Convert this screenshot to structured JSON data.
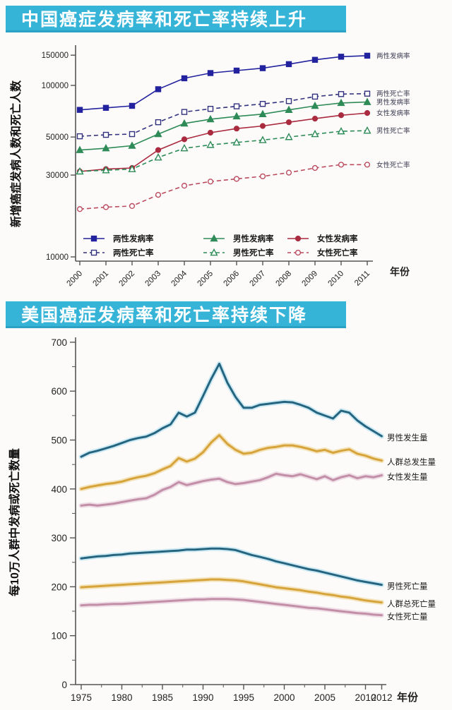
{
  "banners": {
    "china": "中国癌症发病率和死亡率持续上升",
    "usa": "美国癌症发病率和死亡率持续下降"
  },
  "colors": {
    "banner_bg": "#35b4d8",
    "banner_text": "#ffffff",
    "axis": "#555555",
    "tick_text": "#222222",
    "china_both_incidence": "#22229e",
    "china_both_mortality": "#32327e",
    "china_male": "#2e8b57",
    "china_female": "#aa2b3f",
    "china_female_mortality": "#bb4b5f",
    "usa_male": "#26657f",
    "usa_total": "#d7a43b",
    "usa_female": "#c38fa7",
    "usa_male_glow": "#cdeaf4",
    "usa_total_glow": "#f4e4bd",
    "usa_female_glow": "#eeddе6"
  },
  "chart_data": [
    {
      "type": "line",
      "title": "中国癌症发病率和死亡率持续上升",
      "ylabel": "新增癌症发病人数和死亡人数",
      "xlabel": "年份",
      "yscale": "log",
      "ylim": [
        10000,
        160000
      ],
      "yticks": [
        150000,
        100000,
        50000,
        30000,
        10000
      ],
      "x": [
        2000,
        2001,
        2002,
        2003,
        2004,
        2005,
        2006,
        2007,
        2008,
        2009,
        2010,
        2011
      ],
      "legend_position": "inside-bottom",
      "grid": false,
      "series": [
        {
          "name": "两性发病率",
          "color": "#22229e",
          "marker": "square",
          "filled": true,
          "dashed": false,
          "values": [
            72000,
            74000,
            76000,
            95000,
            110000,
            118000,
            122000,
            126000,
            133000,
            141000,
            147000,
            149000
          ]
        },
        {
          "name": "两性死亡率",
          "color": "#32327e",
          "marker": "square",
          "filled": false,
          "dashed": true,
          "values": [
            50500,
            51500,
            52000,
            61000,
            70000,
            73000,
            75500,
            78000,
            81000,
            86000,
            89000,
            89500
          ]
        },
        {
          "name": "男性发病率",
          "color": "#2e8b57",
          "marker": "triangle",
          "filled": true,
          "dashed": false,
          "values": [
            42000,
            43000,
            44500,
            52000,
            60000,
            63500,
            66000,
            68000,
            72000,
            76000,
            79000,
            80000
          ]
        },
        {
          "name": "女性发病率",
          "color": "#aa2b3f",
          "marker": "circle",
          "filled": true,
          "dashed": false,
          "values": [
            31500,
            32500,
            33000,
            42000,
            48500,
            53000,
            56000,
            58000,
            61000,
            64000,
            67000,
            69000
          ]
        },
        {
          "name": "男性死亡率",
          "color": "#2e8b57",
          "marker": "triangle",
          "filled": false,
          "dashed": true,
          "values": [
            31500,
            32000,
            32500,
            38000,
            43000,
            45000,
            46500,
            48000,
            50000,
            52000,
            54000,
            54500
          ]
        },
        {
          "name": "女性死亡率",
          "color": "#bb4b5f",
          "marker": "circle",
          "filled": false,
          "dashed": true,
          "values": [
            19000,
            19500,
            19800,
            23000,
            26000,
            27500,
            28500,
            29500,
            31000,
            33000,
            34500,
            34500
          ]
        }
      ]
    },
    {
      "type": "line",
      "title": "美国癌症发病率和死亡率持续下降",
      "ylabel": "每10万人群中发病或死亡数量",
      "xlabel": "年份",
      "yscale": "linear",
      "ylim": [
        0,
        700
      ],
      "yticks": [
        0,
        100,
        200,
        300,
        400,
        500,
        600,
        700
      ],
      "xticks": [
        1975,
        1980,
        1985,
        1990,
        1995,
        2000,
        2005,
        2010,
        2012
      ],
      "x_start": 1975,
      "x_end": 2012,
      "grid": false,
      "series": [
        {
          "name": "男性发生量",
          "color": "#26657f",
          "glow": "#cdeaf4",
          "values": [
            466,
            474,
            478,
            483,
            488,
            494,
            500,
            504,
            507,
            514,
            524,
            532,
            556,
            548,
            556,
            590,
            625,
            656,
            617,
            588,
            566,
            566,
            572,
            574,
            576,
            578,
            577,
            572,
            566,
            556,
            550,
            544,
            560,
            556,
            540,
            528,
            518,
            508
          ]
        },
        {
          "name": "人群总发生量",
          "color": "#d7a43b",
          "glow": "#f4e4bd",
          "values": [
            400,
            404,
            407,
            410,
            412,
            415,
            420,
            424,
            427,
            432,
            440,
            447,
            463,
            456,
            462,
            475,
            495,
            510,
            492,
            480,
            472,
            474,
            480,
            484,
            486,
            489,
            489,
            486,
            482,
            477,
            480,
            474,
            478,
            481,
            472,
            468,
            462,
            458
          ]
        },
        {
          "name": "女性发生量",
          "color": "#c38fa7",
          "glow": "#eedde6",
          "values": [
            366,
            368,
            366,
            368,
            370,
            373,
            376,
            379,
            381,
            388,
            398,
            404,
            414,
            408,
            412,
            416,
            419,
            421,
            414,
            410,
            412,
            415,
            418,
            424,
            431,
            428,
            426,
            430,
            425,
            420,
            426,
            418,
            424,
            428,
            422,
            426,
            424,
            428
          ]
        },
        {
          "name": "男性死亡量",
          "color": "#26657f",
          "glow": "#cdeaf4",
          "values": [
            258,
            260,
            262,
            263,
            265,
            266,
            268,
            269,
            270,
            271,
            272,
            273,
            274,
            276,
            276,
            277,
            278,
            278,
            277,
            275,
            270,
            265,
            261,
            257,
            252,
            248,
            244,
            240,
            236,
            233,
            229,
            225,
            221,
            217,
            213,
            210,
            207,
            204
          ]
        },
        {
          "name": "人群总死亡量",
          "color": "#d7a43b",
          "glow": "#f4e4bd",
          "values": [
            199,
            200,
            201,
            202,
            203,
            204,
            205,
            206,
            207,
            208,
            209,
            210,
            211,
            212,
            213,
            214,
            215,
            215,
            214,
            213,
            211,
            208,
            205,
            202,
            199,
            197,
            195,
            193,
            190,
            188,
            185,
            183,
            180,
            178,
            175,
            172,
            170,
            168
          ]
        },
        {
          "name": "女性死亡量",
          "color": "#c38fa7",
          "glow": "#eedde6",
          "values": [
            162,
            163,
            163,
            164,
            165,
            165,
            166,
            167,
            168,
            169,
            170,
            171,
            172,
            173,
            174,
            174,
            175,
            175,
            175,
            174,
            173,
            171,
            169,
            167,
            165,
            163,
            161,
            159,
            157,
            156,
            154,
            152,
            150,
            148,
            146,
            145,
            143,
            142
          ]
        }
      ]
    }
  ]
}
